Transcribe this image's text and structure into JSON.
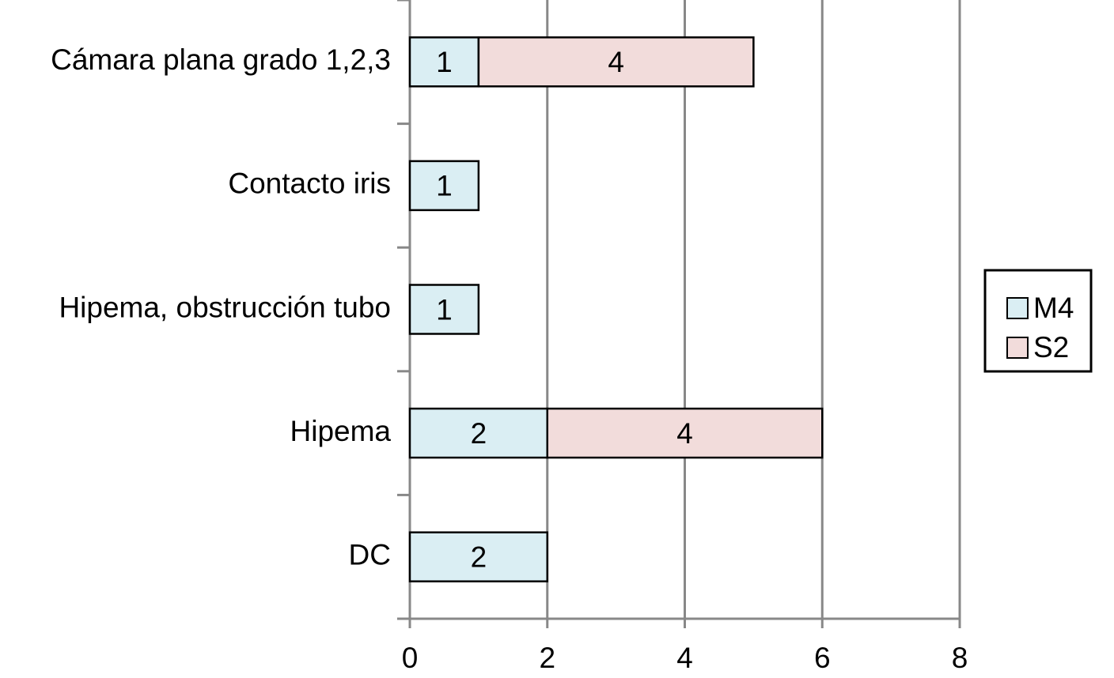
{
  "chart_data": {
    "type": "stacked_bar_horizontal",
    "categories": [
      "Cámara plana  grado 1,2,3",
      "Contacto iris",
      "Hipema, obstrucción tubo",
      "Hipema",
      "DC"
    ],
    "series": [
      {
        "name": "M4",
        "color": "#daeef3",
        "values": [
          1,
          1,
          1,
          2,
          2
        ]
      },
      {
        "name": "S2",
        "color": "#f2dcdb",
        "values": [
          4,
          null,
          null,
          4,
          null
        ]
      }
    ],
    "xlim": [
      0,
      8
    ],
    "xticks": [
      0,
      2,
      4,
      6,
      8
    ],
    "grid": true,
    "legend": "right"
  }
}
